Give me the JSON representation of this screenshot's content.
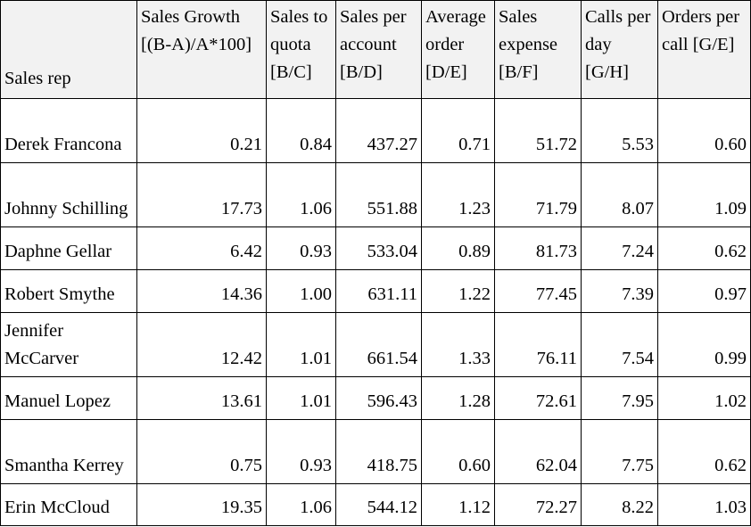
{
  "columns": [
    "Sales rep",
    "Sales Growth [(B-A)/A*100]",
    "Sales to quota [B/C]",
    "Sales per account [B/D]",
    "Average order [D/E]",
    "Sales expense [B/F]",
    "Calls per day [G/H]",
    "Orders per call [G/E]"
  ],
  "rows": [
    {
      "rep": "Derek Francona",
      "values": [
        "0.21",
        "0.84",
        "437.27",
        "0.71",
        "51.72",
        "5.53",
        "0.60"
      ]
    },
    {
      "rep": "Johnny Schilling",
      "values": [
        "17.73",
        "1.06",
        "551.88",
        "1.23",
        "71.79",
        "8.07",
        "1.09"
      ]
    },
    {
      "rep": "Daphne Gellar",
      "values": [
        "6.42",
        "0.93",
        "533.04",
        "0.89",
        "81.73",
        "7.24",
        "0.62"
      ]
    },
    {
      "rep": "Robert Smythe",
      "values": [
        "14.36",
        "1.00",
        "631.11",
        "1.22",
        "77.45",
        "7.39",
        "0.97"
      ]
    },
    {
      "rep": "Jennifer McCarver",
      "values": [
        "12.42",
        "1.01",
        "661.54",
        "1.33",
        "76.11",
        "7.54",
        "0.99"
      ]
    },
    {
      "rep": "Manuel Lopez",
      "values": [
        "13.61",
        "1.01",
        "596.43",
        "1.28",
        "72.61",
        "7.95",
        "1.02"
      ]
    },
    {
      "rep": "Smantha Kerrey",
      "values": [
        "0.75",
        "0.93",
        "418.75",
        "0.60",
        "62.04",
        "7.75",
        "0.62"
      ]
    },
    {
      "rep": "Erin McCloud",
      "values": [
        "19.35",
        "1.06",
        "544.12",
        "1.12",
        "72.27",
        "8.22",
        "1.03"
      ]
    }
  ]
}
